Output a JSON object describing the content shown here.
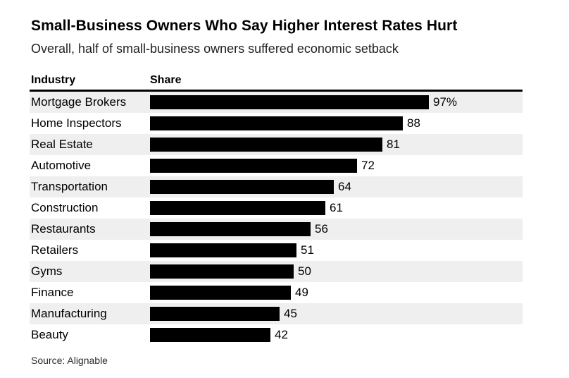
{
  "page": {
    "title": "Small-Business Owners Who Say Higher Interest Rates Hurt",
    "subtitle": "Overall, half of small-business owners suffered economic setback",
    "source": "Source: Alignable"
  },
  "table": {
    "column_industry": "Industry",
    "column_share": "Share"
  },
  "chart_data": {
    "type": "bar",
    "orientation": "horizontal",
    "title": "Small-Business Owners Who Say Higher Interest Rates Hurt",
    "subtitle": "Overall, half of small-business owners suffered economic setback",
    "xlabel": "Share",
    "ylabel": "Industry",
    "xlim": [
      0,
      100
    ],
    "grid": false,
    "legend": false,
    "categories": [
      "Mortgage Brokers",
      "Home Inspectors",
      "Real Estate",
      "Automotive",
      "Transportation",
      "Construction",
      "Restaurants",
      "Retailers",
      "Gyms",
      "Finance",
      "Manufacturing",
      "Beauty"
    ],
    "values": [
      97,
      88,
      81,
      72,
      64,
      61,
      56,
      51,
      50,
      49,
      45,
      42
    ],
    "value_labels": [
      "97%",
      "88",
      "81",
      "72",
      "64",
      "61",
      "56",
      "51",
      "50",
      "49",
      "45",
      "42"
    ],
    "bar_color": "#000000",
    "row_stripe_color": "#efefef",
    "source": "Source: Alignable"
  }
}
